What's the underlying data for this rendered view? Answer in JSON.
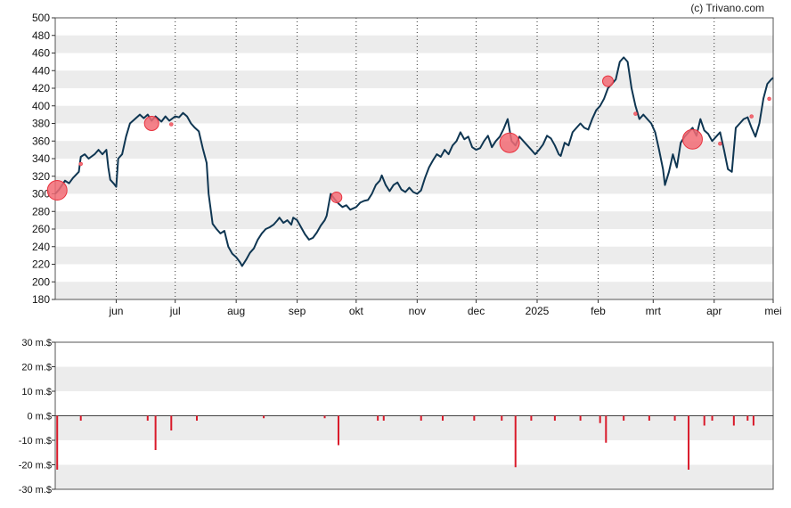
{
  "credit": "(c) Trivano.com",
  "colors": {
    "line": "#0f3652",
    "marker": "#e8323e",
    "marker_fill": "#f26b74",
    "bar": "#d91a2a",
    "band": "#ececec"
  },
  "chart_data": [
    {
      "type": "line",
      "title": "",
      "xlabel": "",
      "ylabel": "",
      "ylim": [
        180,
        500
      ],
      "yticks": [
        180,
        200,
        220,
        240,
        260,
        280,
        300,
        320,
        340,
        360,
        380,
        400,
        420,
        440,
        460,
        480,
        500
      ],
      "grid": "horizontal-bands",
      "x_range": [
        "2024-05-01",
        "2025-05-01"
      ],
      "x_ticks": [
        {
          "date": "2024-06-01",
          "label": "jun"
        },
        {
          "date": "2024-07-01",
          "label": "jul"
        },
        {
          "date": "2024-08-01",
          "label": "aug"
        },
        {
          "date": "2024-09-01",
          "label": "sep"
        },
        {
          "date": "2024-10-01",
          "label": "okt"
        },
        {
          "date": "2024-11-01",
          "label": "nov"
        },
        {
          "date": "2024-12-01",
          "label": "dec"
        },
        {
          "date": "2025-01-01",
          "label": "2025"
        },
        {
          "date": "2025-02-01",
          "label": "feb"
        },
        {
          "date": "2025-03-01",
          "label": "mrt"
        },
        {
          "date": "2025-04-01",
          "label": "apr"
        },
        {
          "date": "2025-05-01",
          "label": "mei"
        }
      ],
      "series": [
        {
          "points": [
            [
              "2024-05-01",
              300
            ],
            [
              "2024-05-03",
              305
            ],
            [
              "2024-05-06",
              315
            ],
            [
              "2024-05-08",
              312
            ],
            [
              "2024-05-10",
              318
            ],
            [
              "2024-05-13",
              325
            ],
            [
              "2024-05-14",
              342
            ],
            [
              "2024-05-16",
              345
            ],
            [
              "2024-05-18",
              340
            ],
            [
              "2024-05-21",
              345
            ],
            [
              "2024-05-23",
              350
            ],
            [
              "2024-05-25",
              345
            ],
            [
              "2024-05-27",
              350
            ],
            [
              "2024-05-28",
              330
            ],
            [
              "2024-05-29",
              316
            ],
            [
              "2024-05-31",
              311
            ],
            [
              "2024-06-01",
              308
            ],
            [
              "2024-06-02",
              340
            ],
            [
              "2024-06-04",
              345
            ],
            [
              "2024-06-06",
              365
            ],
            [
              "2024-06-08",
              380
            ],
            [
              "2024-06-11",
              386
            ],
            [
              "2024-06-13",
              390
            ],
            [
              "2024-06-15",
              386
            ],
            [
              "2024-06-17",
              390
            ],
            [
              "2024-06-19",
              383
            ],
            [
              "2024-06-21",
              388
            ],
            [
              "2024-06-24",
              382
            ],
            [
              "2024-06-26",
              388
            ],
            [
              "2024-06-28",
              383
            ],
            [
              "2024-07-01",
              388
            ],
            [
              "2024-07-03",
              387
            ],
            [
              "2024-07-05",
              392
            ],
            [
              "2024-07-07",
              388
            ],
            [
              "2024-07-09",
              380
            ],
            [
              "2024-07-11",
              375
            ],
            [
              "2024-07-13",
              371
            ],
            [
              "2024-07-15",
              352
            ],
            [
              "2024-07-17",
              335
            ],
            [
              "2024-07-18",
              300
            ],
            [
              "2024-07-20",
              266
            ],
            [
              "2024-07-22",
              260
            ],
            [
              "2024-07-24",
              255
            ],
            [
              "2024-07-26",
              258
            ],
            [
              "2024-07-28",
              240
            ],
            [
              "2024-07-30",
              232
            ],
            [
              "2024-08-01",
              228
            ],
            [
              "2024-08-03",
              222
            ],
            [
              "2024-08-04",
              218
            ],
            [
              "2024-08-06",
              225
            ],
            [
              "2024-08-08",
              233
            ],
            [
              "2024-08-10",
              238
            ],
            [
              "2024-08-12",
              248
            ],
            [
              "2024-08-14",
              255
            ],
            [
              "2024-08-16",
              260
            ],
            [
              "2024-08-18",
              262
            ],
            [
              "2024-08-20",
              265
            ],
            [
              "2024-08-22",
              270
            ],
            [
              "2024-08-23",
              273
            ],
            [
              "2024-08-25",
              267
            ],
            [
              "2024-08-27",
              270
            ],
            [
              "2024-08-29",
              265
            ],
            [
              "2024-08-30",
              273
            ],
            [
              "2024-09-01",
              270
            ],
            [
              "2024-09-03",
              262
            ],
            [
              "2024-09-05",
              254
            ],
            [
              "2024-09-07",
              248
            ],
            [
              "2024-09-09",
              250
            ],
            [
              "2024-09-11",
              256
            ],
            [
              "2024-09-13",
              264
            ],
            [
              "2024-09-15",
              270
            ],
            [
              "2024-09-16",
              275
            ],
            [
              "2024-09-18",
              300
            ],
            [
              "2024-09-20",
              294
            ],
            [
              "2024-09-22",
              289
            ],
            [
              "2024-09-24",
              285
            ],
            [
              "2024-09-26",
              287
            ],
            [
              "2024-09-28",
              282
            ],
            [
              "2024-10-01",
              285
            ],
            [
              "2024-10-03",
              290
            ],
            [
              "2024-10-05",
              292
            ],
            [
              "2024-10-07",
              293
            ],
            [
              "2024-10-09",
              300
            ],
            [
              "2024-10-11",
              310
            ],
            [
              "2024-10-13",
              315
            ],
            [
              "2024-10-14",
              321
            ],
            [
              "2024-10-16",
              310
            ],
            [
              "2024-10-18",
              303
            ],
            [
              "2024-10-20",
              310
            ],
            [
              "2024-10-22",
              313
            ],
            [
              "2024-10-24",
              305
            ],
            [
              "2024-10-26",
              302
            ],
            [
              "2024-10-28",
              307
            ],
            [
              "2024-10-30",
              302
            ],
            [
              "2024-11-01",
              300
            ],
            [
              "2024-11-03",
              304
            ],
            [
              "2024-11-05",
              318
            ],
            [
              "2024-11-07",
              330
            ],
            [
              "2024-11-09",
              338
            ],
            [
              "2024-11-11",
              345
            ],
            [
              "2024-11-13",
              342
            ],
            [
              "2024-11-15",
              350
            ],
            [
              "2024-11-17",
              345
            ],
            [
              "2024-11-19",
              355
            ],
            [
              "2024-11-21",
              360
            ],
            [
              "2024-11-23",
              370
            ],
            [
              "2024-11-25",
              362
            ],
            [
              "2024-11-27",
              365
            ],
            [
              "2024-11-29",
              353
            ],
            [
              "2024-12-01",
              350
            ],
            [
              "2024-12-03",
              352
            ],
            [
              "2024-12-05",
              360
            ],
            [
              "2024-12-07",
              366
            ],
            [
              "2024-12-09",
              353
            ],
            [
              "2024-12-11",
              360
            ],
            [
              "2024-12-13",
              365
            ],
            [
              "2024-12-15",
              374
            ],
            [
              "2024-12-17",
              385
            ],
            [
              "2024-12-19",
              360
            ],
            [
              "2024-12-21",
              355
            ],
            [
              "2024-12-23",
              365
            ],
            [
              "2024-12-25",
              360
            ],
            [
              "2024-12-27",
              355
            ],
            [
              "2024-12-29",
              350
            ],
            [
              "2024-12-31",
              345
            ],
            [
              "2025-01-02",
              350
            ],
            [
              "2025-01-04",
              356
            ],
            [
              "2025-01-06",
              366
            ],
            [
              "2025-01-08",
              363
            ],
            [
              "2025-01-10",
              355
            ],
            [
              "2025-01-12",
              345
            ],
            [
              "2025-01-13",
              343
            ],
            [
              "2025-01-15",
              358
            ],
            [
              "2025-01-17",
              355
            ],
            [
              "2025-01-19",
              370
            ],
            [
              "2025-01-21",
              375
            ],
            [
              "2025-01-23",
              380
            ],
            [
              "2025-01-25",
              375
            ],
            [
              "2025-01-27",
              373
            ],
            [
              "2025-01-29",
              385
            ],
            [
              "2025-01-31",
              395
            ],
            [
              "2025-02-02",
              400
            ],
            [
              "2025-02-04",
              408
            ],
            [
              "2025-02-06",
              420
            ],
            [
              "2025-02-08",
              425
            ],
            [
              "2025-02-10",
              430
            ],
            [
              "2025-02-12",
              450
            ],
            [
              "2025-02-14",
              455
            ],
            [
              "2025-02-16",
              450
            ],
            [
              "2025-02-18",
              420
            ],
            [
              "2025-02-20",
              400
            ],
            [
              "2025-02-22",
              385
            ],
            [
              "2025-02-24",
              390
            ],
            [
              "2025-02-26",
              385
            ],
            [
              "2025-02-28",
              380
            ],
            [
              "2025-03-02",
              370
            ],
            [
              "2025-03-04",
              350
            ],
            [
              "2025-03-06",
              328
            ],
            [
              "2025-03-07",
              310
            ],
            [
              "2025-03-09",
              325
            ],
            [
              "2025-03-11",
              345
            ],
            [
              "2025-03-13",
              330
            ],
            [
              "2025-03-15",
              358
            ],
            [
              "2025-03-17",
              365
            ],
            [
              "2025-03-19",
              370
            ],
            [
              "2025-03-21",
              375
            ],
            [
              "2025-03-23",
              366
            ],
            [
              "2025-03-25",
              385
            ],
            [
              "2025-03-27",
              372
            ],
            [
              "2025-03-29",
              368
            ],
            [
              "2025-03-31",
              360
            ],
            [
              "2025-04-02",
              365
            ],
            [
              "2025-04-04",
              370
            ],
            [
              "2025-04-06",
              350
            ],
            [
              "2025-04-08",
              328
            ],
            [
              "2025-04-10",
              325
            ],
            [
              "2025-04-12",
              375
            ],
            [
              "2025-04-14",
              380
            ],
            [
              "2025-04-16",
              385
            ],
            [
              "2025-04-18",
              387
            ],
            [
              "2025-04-20",
              375
            ],
            [
              "2025-04-22",
              365
            ],
            [
              "2025-04-24",
              380
            ],
            [
              "2025-04-26",
              408
            ],
            [
              "2025-04-28",
              425
            ],
            [
              "2025-04-30",
              430
            ],
            [
              "2025-05-01",
              432
            ]
          ]
        }
      ],
      "markers": [
        {
          "date": "2024-05-02",
          "value": 304,
          "size": "large"
        },
        {
          "date": "2024-05-14",
          "value": 334,
          "size": "tiny"
        },
        {
          "date": "2024-06-19",
          "value": 380,
          "size": "medium"
        },
        {
          "date": "2024-06-29",
          "value": 379,
          "size": "tiny"
        },
        {
          "date": "2024-09-21",
          "value": 296,
          "size": "small"
        },
        {
          "date": "2024-12-18",
          "value": 358,
          "size": "large"
        },
        {
          "date": "2025-02-06",
          "value": 428,
          "size": "small"
        },
        {
          "date": "2025-02-20",
          "value": 391,
          "size": "tiny"
        },
        {
          "date": "2025-03-21",
          "value": 362,
          "size": "large"
        },
        {
          "date": "2025-04-04",
          "value": 357,
          "size": "tiny"
        },
        {
          "date": "2025-04-20",
          "value": 388,
          "size": "tiny"
        },
        {
          "date": "2025-04-29",
          "value": 408,
          "size": "tiny"
        }
      ]
    },
    {
      "type": "bar",
      "title": "",
      "xlabel": "",
      "ylabel": "",
      "ylim": [
        -30,
        30
      ],
      "yticks": [
        {
          "value": 30,
          "label": "30 m.$"
        },
        {
          "value": 20,
          "label": "20 m.$"
        },
        {
          "value": 10,
          "label": "10 m.$"
        },
        {
          "value": 0,
          "label": "0 m.$"
        },
        {
          "value": -10,
          "label": "-10 m.$"
        },
        {
          "value": -20,
          "label": "-20 m.$"
        },
        {
          "value": -30,
          "label": "-30 m.$"
        }
      ],
      "grid": "horizontal-bands",
      "bars": [
        [
          "2024-05-02",
          -22
        ],
        [
          "2024-05-14",
          -2
        ],
        [
          "2024-06-17",
          -2
        ],
        [
          "2024-06-21",
          -14
        ],
        [
          "2024-06-29",
          -6
        ],
        [
          "2024-07-12",
          -2
        ],
        [
          "2024-08-15",
          -1
        ],
        [
          "2024-09-15",
          -1
        ],
        [
          "2024-09-22",
          -12
        ],
        [
          "2024-10-12",
          -2
        ],
        [
          "2024-10-15",
          -2
        ],
        [
          "2024-11-03",
          -2
        ],
        [
          "2024-11-14",
          -2
        ],
        [
          "2024-11-30",
          -2
        ],
        [
          "2024-12-14",
          -2
        ],
        [
          "2024-12-21",
          -21
        ],
        [
          "2024-12-29",
          -2
        ],
        [
          "2025-01-10",
          -2
        ],
        [
          "2025-01-23",
          -2
        ],
        [
          "2025-02-02",
          -3
        ],
        [
          "2025-02-05",
          -11
        ],
        [
          "2025-02-14",
          -2
        ],
        [
          "2025-02-27",
          -2
        ],
        [
          "2025-03-12",
          -2
        ],
        [
          "2025-03-19",
          -22
        ],
        [
          "2025-03-27",
          -4
        ],
        [
          "2025-03-31",
          -2
        ],
        [
          "2025-04-11",
          -4
        ],
        [
          "2025-04-18",
          -2
        ],
        [
          "2025-04-21",
          -4
        ]
      ]
    }
  ]
}
